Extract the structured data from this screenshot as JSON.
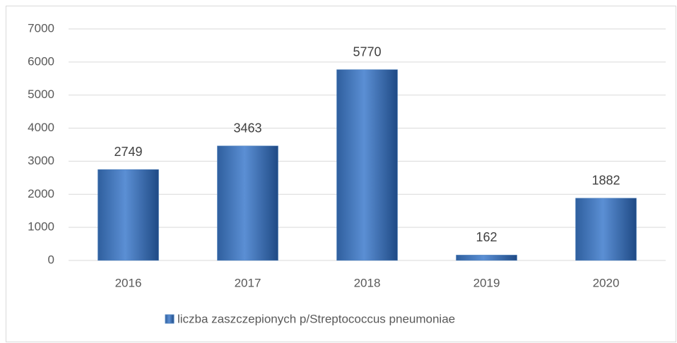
{
  "chart_data": {
    "type": "bar",
    "categories": [
      "2016",
      "2017",
      "2018",
      "2019",
      "2020"
    ],
    "series": [
      {
        "name": "liczba zaszczepionych p/Streptococcus pneumoniae",
        "color": "#4a7ebb",
        "values": [
          2749,
          3463,
          5770,
          162,
          1882
        ]
      }
    ],
    "ylim": [
      0,
      7000
    ],
    "yticks": [
      0,
      1000,
      2000,
      3000,
      4000,
      5000,
      6000,
      7000
    ],
    "grid": true,
    "legend": "bottom"
  }
}
